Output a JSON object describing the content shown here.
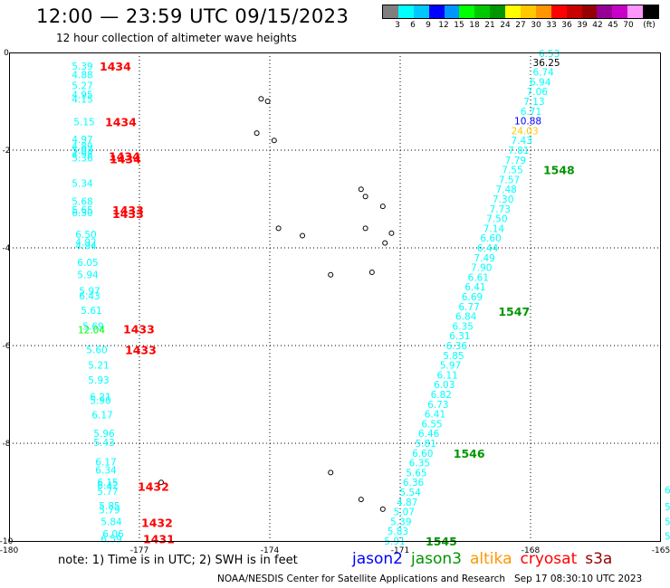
{
  "header": {
    "title": "12:00 — 23:59 UTC 09/15/2023",
    "subtitle": "12 hour collection of altimeter wave heights"
  },
  "legend": {
    "colors": [
      "#7f7f7f",
      "#00ffff",
      "#00c8ff",
      "#0000ff",
      "#0096ff",
      "#00ff00",
      "#00c800",
      "#009600",
      "#ffff00",
      "#ffc800",
      "#ff9600",
      "#ff0000",
      "#c80000",
      "#960000",
      "#960096",
      "#c800c8",
      "#ff96ff",
      "#000000"
    ],
    "ticks": [
      "3",
      "6",
      "9",
      "12",
      "15",
      "18",
      "21",
      "24",
      "27",
      "30",
      "33",
      "36",
      "39",
      "42",
      "45",
      "70",
      "(ft)"
    ]
  },
  "map": {
    "lon_min": -180,
    "lon_max": -165,
    "lat_min": -10,
    "lat_max": 0,
    "lon_labels": [
      "-180",
      "-177",
      "-174",
      "-171",
      "-168",
      "-165"
    ],
    "lat_labels": [
      "0",
      "-2",
      "-4",
      "-6",
      "-8",
      "-10"
    ],
    "islands": [
      {
        "lon": -174.2,
        "lat": -0.95
      },
      {
        "lon": -174.05,
        "lat": -1.0
      },
      {
        "lon": -174.3,
        "lat": -1.65
      },
      {
        "lon": -173.9,
        "lat": -1.8
      },
      {
        "lon": -173.8,
        "lat": -3.6
      },
      {
        "lon": -173.25,
        "lat": -3.75
      },
      {
        "lon": -171.9,
        "lat": -2.8
      },
      {
        "lon": -171.8,
        "lat": -2.95
      },
      {
        "lon": -171.4,
        "lat": -3.15
      },
      {
        "lon": -171.8,
        "lat": -3.6
      },
      {
        "lon": -171.2,
        "lat": -3.7
      },
      {
        "lon": -171.35,
        "lat": -3.9
      },
      {
        "lon": -172.6,
        "lat": -4.55
      },
      {
        "lon": -171.65,
        "lat": -4.5
      },
      {
        "lon": -172.6,
        "lat": -8.6
      },
      {
        "lon": -171.9,
        "lat": -9.15
      },
      {
        "lon": -171.4,
        "lat": -9.35
      },
      {
        "lon": -176.5,
        "lat": -8.8
      }
    ],
    "left_track": [
      {
        "lat": -0.28,
        "v": "5.39",
        "c": "#00ffff",
        "dx": 0
      },
      {
        "lat": -0.45,
        "v": "4.88",
        "c": "#00ffff",
        "dx": 0
      },
      {
        "lat": -0.68,
        "v": "5.27",
        "c": "#00ffff",
        "dx": 0
      },
      {
        "lat": -0.86,
        "v": "4.95",
        "c": "#00ffff",
        "dx": 0
      },
      {
        "lat": -0.95,
        "v": "4.15",
        "c": "#00ffff",
        "dx": 0
      },
      {
        "lat": -1.42,
        "v": "5.15",
        "c": "#00ffff",
        "dx": 2
      },
      {
        "lat": -1.78,
        "v": "4.97",
        "c": "#00ffff",
        "dx": 0
      },
      {
        "lat": -1.92,
        "v": "4.89",
        "c": "#00ffff",
        "dx": 0
      },
      {
        "lat": -2.0,
        "v": "5.03",
        "c": "#00ffff",
        "dx": 0
      },
      {
        "lat": -2.08,
        "v": "4.98",
        "c": "#00ffff",
        "dx": 0
      },
      {
        "lat": -2.16,
        "v": "5.36",
        "c": "#00ffff",
        "dx": 0
      },
      {
        "lat": -2.68,
        "v": "5.34",
        "c": "#00ffff",
        "dx": 0
      },
      {
        "lat": -3.05,
        "v": "5.68",
        "c": "#00ffff",
        "dx": 0
      },
      {
        "lat": -3.22,
        "v": "5.65",
        "c": "#00ffff",
        "dx": 0
      },
      {
        "lat": -3.28,
        "v": "6.30",
        "c": "#00ffff",
        "dx": 0
      },
      {
        "lat": -3.72,
        "v": "6.50",
        "c": "#00ffff",
        "dx": 4
      },
      {
        "lat": -3.88,
        "v": "4.92",
        "c": "#00ffff",
        "dx": 4
      },
      {
        "lat": -3.95,
        "v": "4.94",
        "c": "#00ffff",
        "dx": 4
      },
      {
        "lat": -4.3,
        "v": "6.05",
        "c": "#00ffff",
        "dx": 6
      },
      {
        "lat": -4.55,
        "v": "5.94",
        "c": "#00ffff",
        "dx": 6
      },
      {
        "lat": -4.88,
        "v": "5.97",
        "c": "#00ffff",
        "dx": 8
      },
      {
        "lat": -4.98,
        "v": "6.43",
        "c": "#00ffff",
        "dx": 8
      },
      {
        "lat": -5.28,
        "v": "5.61",
        "c": "#00ffff",
        "dx": 10
      },
      {
        "lat": -5.6,
        "v": "5.69",
        "c": "#00ffff",
        "dx": 12
      },
      {
        "lat": -5.68,
        "v": "12.04",
        "c": "#00ff00",
        "dx": 10
      },
      {
        "lat": -6.08,
        "v": "5.60",
        "c": "#00ffff",
        "dx": 16
      },
      {
        "lat": -6.4,
        "v": "5.21",
        "c": "#00ffff",
        "dx": 18
      },
      {
        "lat": -6.7,
        "v": "5.93",
        "c": "#00ffff",
        "dx": 18
      },
      {
        "lat": -7.05,
        "v": "6.21",
        "c": "#00ffff",
        "dx": 20
      },
      {
        "lat": -7.12,
        "v": "5.90",
        "c": "#00ffff",
        "dx": 20
      },
      {
        "lat": -7.42,
        "v": "6.17",
        "c": "#00ffff",
        "dx": 22
      },
      {
        "lat": -7.8,
        "v": "5.96",
        "c": "#00ffff",
        "dx": 24
      },
      {
        "lat": -7.98,
        "v": "5.43",
        "c": "#00ffff",
        "dx": 24
      },
      {
        "lat": -8.38,
        "v": "6.17",
        "c": "#00ffff",
        "dx": 26
      },
      {
        "lat": -8.55,
        "v": "6.34",
        "c": "#00ffff",
        "dx": 26
      },
      {
        "lat": -8.8,
        "v": "6.15",
        "c": "#00ffff",
        "dx": 28
      },
      {
        "lat": -8.86,
        "v": "6.42",
        "c": "#00ffff",
        "dx": 28
      },
      {
        "lat": -8.98,
        "v": "5.77",
        "c": "#00ffff",
        "dx": 28
      },
      {
        "lat": -9.28,
        "v": "5.85",
        "c": "#00ffff",
        "dx": 30
      },
      {
        "lat": -9.36,
        "v": "5.79",
        "c": "#00ffff",
        "dx": 30
      },
      {
        "lat": -9.6,
        "v": "5.84",
        "c": "#00ffff",
        "dx": 32
      },
      {
        "lat": -9.85,
        "v": "6.06",
        "c": "#00ffff",
        "dx": 34
      },
      {
        "lat": -9.95,
        "v": "6.59",
        "c": "#00ffff",
        "dx": 32
      }
    ],
    "left_times": [
      {
        "lat": -0.28,
        "v": "1434",
        "x": 110
      },
      {
        "lat": -1.42,
        "v": "1434",
        "x": 116
      },
      {
        "lat": -2.12,
        "v": "1434",
        "x": 120
      },
      {
        "lat": -2.18,
        "v": "1434",
        "x": 121
      },
      {
        "lat": -3.22,
        "v": "1433",
        "x": 124
      },
      {
        "lat": -3.3,
        "v": "1433",
        "x": 124
      },
      {
        "lat": -5.66,
        "v": "1433",
        "x": 136
      },
      {
        "lat": -6.08,
        "v": "1433",
        "x": 138
      },
      {
        "lat": -8.88,
        "v": "1432",
        "x": 152
      },
      {
        "lat": -9.62,
        "v": "1432",
        "x": 156
      },
      {
        "lat": -9.95,
        "v": "1431",
        "x": 158
      }
    ],
    "right_track": [
      {
        "lat": -0.02,
        "v": "6.53",
        "c": "#00ffff"
      },
      {
        "lat": -0.2,
        "v": "36.25",
        "c": "#000000"
      },
      {
        "lat": -0.4,
        "v": "6.74",
        "c": "#00ffff"
      },
      {
        "lat": -0.6,
        "v": "6.94",
        "c": "#00ffff"
      },
      {
        "lat": -0.8,
        "v": "7.06",
        "c": "#00ffff"
      },
      {
        "lat": -1.0,
        "v": "7.13",
        "c": "#00ffff"
      },
      {
        "lat": -1.2,
        "v": "6.71",
        "c": "#00ffff"
      },
      {
        "lat": -1.4,
        "v": "10.88",
        "c": "#0000ff"
      },
      {
        "lat": -1.6,
        "v": "24.03",
        "c": "#ffc800"
      },
      {
        "lat": -1.8,
        "v": "7.43",
        "c": "#00ffff"
      },
      {
        "lat": -2.0,
        "v": "7.81",
        "c": "#00ffff"
      },
      {
        "lat": -2.2,
        "v": "7.79",
        "c": "#00ffff"
      },
      {
        "lat": -2.4,
        "v": "7.55",
        "c": "#00ffff"
      },
      {
        "lat": -2.6,
        "v": "7.57",
        "c": "#00ffff"
      },
      {
        "lat": -2.8,
        "v": "7.48",
        "c": "#00ffff"
      },
      {
        "lat": -3.0,
        "v": "7.30",
        "c": "#00ffff"
      },
      {
        "lat": -3.2,
        "v": "7.73",
        "c": "#00ffff"
      },
      {
        "lat": -3.4,
        "v": "7.50",
        "c": "#00ffff"
      },
      {
        "lat": -3.6,
        "v": "7.14",
        "c": "#00ffff"
      },
      {
        "lat": -3.8,
        "v": "6.60",
        "c": "#00ffff"
      },
      {
        "lat": -4.0,
        "v": "6.44",
        "c": "#00ffff"
      },
      {
        "lat": -4.2,
        "v": "7.49",
        "c": "#00ffff"
      },
      {
        "lat": -4.4,
        "v": "7.90",
        "c": "#00ffff"
      },
      {
        "lat": -4.6,
        "v": "6.61",
        "c": "#00ffff"
      },
      {
        "lat": -4.8,
        "v": "6.41",
        "c": "#00ffff"
      },
      {
        "lat": -5.0,
        "v": "6.69",
        "c": "#00ffff"
      },
      {
        "lat": -5.2,
        "v": "6.77",
        "c": "#00ffff"
      },
      {
        "lat": -5.4,
        "v": "6.84",
        "c": "#00ffff"
      },
      {
        "lat": -5.6,
        "v": "6.35",
        "c": "#00ffff"
      },
      {
        "lat": -5.8,
        "v": "6.31",
        "c": "#00ffff"
      },
      {
        "lat": -6.0,
        "v": "6.36",
        "c": "#00ffff"
      },
      {
        "lat": -6.2,
        "v": "5.85",
        "c": "#00ffff"
      },
      {
        "lat": -6.4,
        "v": "5.97",
        "c": "#00ffff"
      },
      {
        "lat": -6.6,
        "v": "6.11",
        "c": "#00ffff"
      },
      {
        "lat": -6.8,
        "v": "6.03",
        "c": "#00ffff"
      },
      {
        "lat": -7.0,
        "v": "6.82",
        "c": "#00ffff"
      },
      {
        "lat": -7.2,
        "v": "6.73",
        "c": "#00ffff"
      },
      {
        "lat": -7.4,
        "v": "6.41",
        "c": "#00ffff"
      },
      {
        "lat": -7.6,
        "v": "6.55",
        "c": "#00ffff"
      },
      {
        "lat": -7.8,
        "v": "6.46",
        "c": "#00ffff"
      },
      {
        "lat": -8.0,
        "v": "5.81",
        "c": "#00ffff"
      },
      {
        "lat": -8.2,
        "v": "6.60",
        "c": "#00ffff"
      },
      {
        "lat": -8.4,
        "v": "6.35",
        "c": "#00ffff"
      },
      {
        "lat": -8.6,
        "v": "5.65",
        "c": "#00ffff"
      },
      {
        "lat": -8.8,
        "v": "6.36",
        "c": "#00ffff"
      },
      {
        "lat": -9.0,
        "v": "5.54",
        "c": "#00ffff"
      },
      {
        "lat": -9.2,
        "v": "4.87",
        "c": "#00ffff"
      },
      {
        "lat": -9.4,
        "v": "5.07",
        "c": "#00ffff"
      },
      {
        "lat": -9.6,
        "v": "5.39",
        "c": "#00ffff"
      },
      {
        "lat": -9.8,
        "v": "5.83",
        "c": "#00ffff"
      },
      {
        "lat": -10.0,
        "v": "5.91",
        "c": "#00ffff"
      }
    ],
    "right_times": [
      {
        "lat": -2.4,
        "v": "1548"
      },
      {
        "lat": -5.3,
        "v": "1547"
      },
      {
        "lat": -8.2,
        "v": "1546"
      },
      {
        "lat": -10.0,
        "v": "1545"
      }
    ],
    "edge_values": [
      {
        "lat": -8.95,
        "v": "6"
      },
      {
        "lat": -9.3,
        "v": "5"
      },
      {
        "lat": -9.6,
        "v": "5"
      },
      {
        "lat": -9.9,
        "v": "5"
      }
    ]
  },
  "footer": {
    "note": "note: 1) Time is in UTC; 2) SWH is in feet",
    "satellites": [
      {
        "name": "jason2",
        "color": "#0000ff"
      },
      {
        "name": "jason3",
        "color": "#009600"
      },
      {
        "name": "altika",
        "color": "#ff9600"
      },
      {
        "name": "cryosat",
        "color": "#ff0000"
      },
      {
        "name": "s3a",
        "color": "#960000"
      }
    ],
    "credit": "NOAA/NESDIS Center for Satellite Applications and Research",
    "timestamp": "Sep 17 08:30:10 UTC 2023"
  }
}
